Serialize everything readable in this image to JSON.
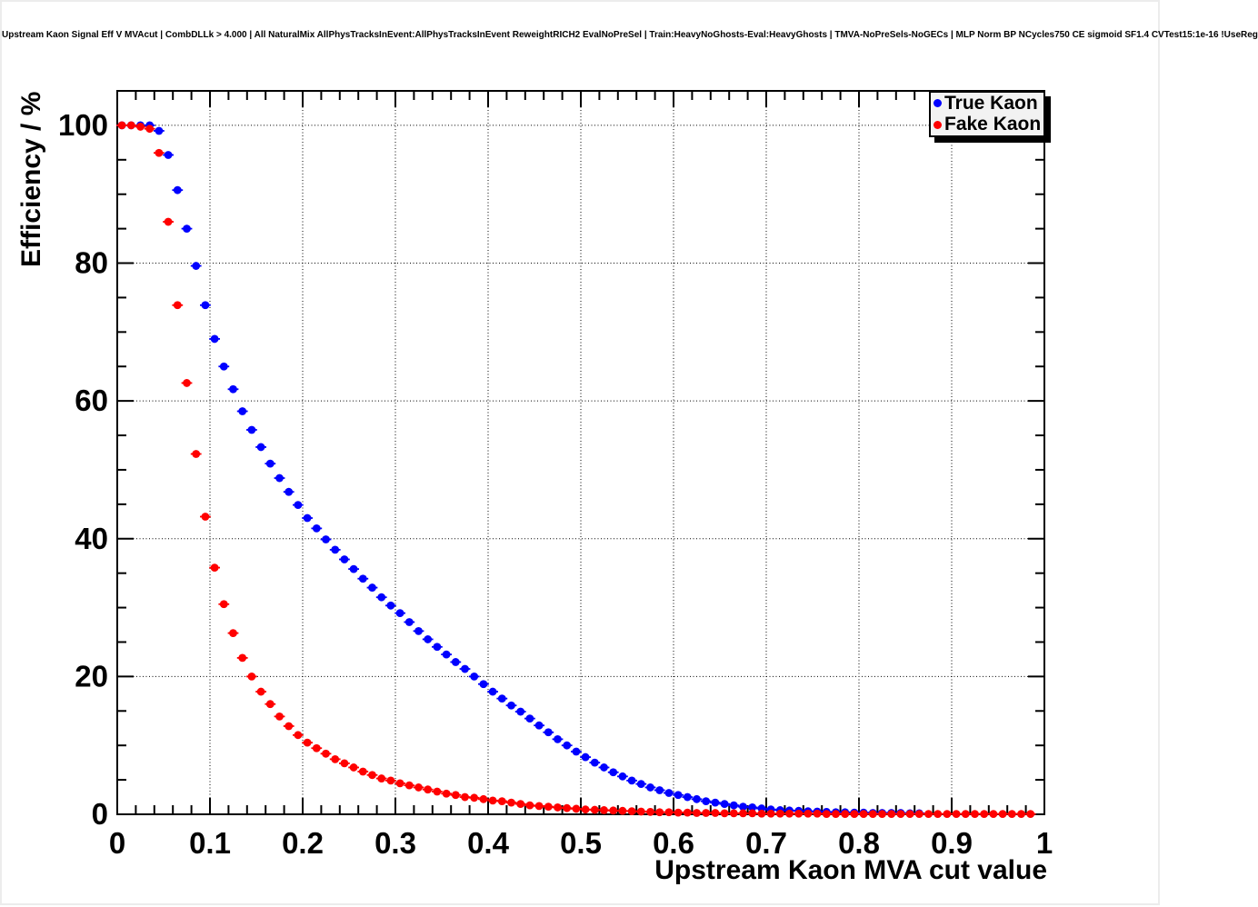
{
  "title": "Upstream Kaon Signal Eff V MVAcut | CombDLLk > 4.000 | All NaturalMix AllPhysTracksInEvent:AllPhysTracksInEvent ReweightRICH2 EvalNoPreSel | Train:HeavyNoGhosts-Eval:HeavyGhosts | TMVA-NoPreSels-NoGECs | MLP Norm BP NCycles750 CE sigmoid SF1.4 CVTest15:1e-16 !UseReg",
  "legend": {
    "entries": [
      {
        "label": "True Kaon",
        "color": "#0000ff"
      },
      {
        "label": "Fake Kaon",
        "color": "#ff0000"
      }
    ]
  },
  "chart_data": {
    "type": "scatter",
    "title": "Upstream Kaon Signal Eff V MVAcut",
    "xlabel": "Upstream Kaon MVA cut value",
    "ylabel": "Efficiency / %",
    "xlim": [
      0,
      1
    ],
    "ylim": [
      0,
      105
    ],
    "grid": true,
    "grid_style": "dotted",
    "legend_position": "top-right",
    "marker": "filled-circle",
    "x_error_half_width": 0.005,
    "x_major_ticks": [
      0,
      0.1,
      0.2,
      0.3,
      0.4,
      0.5,
      0.6,
      0.7,
      0.8,
      0.9,
      1
    ],
    "x_tick_labels": [
      "0",
      "0.1",
      "0.2",
      "0.3",
      "0.4",
      "0.5",
      "0.6",
      "0.7",
      "0.8",
      "0.9",
      "1"
    ],
    "x_minor_step": 0.02,
    "y_major_ticks": [
      0,
      20,
      40,
      60,
      80,
      100
    ],
    "y_tick_labels": [
      "0",
      "20",
      "40",
      "60",
      "80",
      "100"
    ],
    "y_minor_step": 5,
    "series": [
      {
        "name": "True Kaon",
        "color": "#0000ff",
        "x": [
          0.005,
          0.015,
          0.025,
          0.035,
          0.045,
          0.055,
          0.065,
          0.075,
          0.085,
          0.095,
          0.105,
          0.115,
          0.125,
          0.135,
          0.145,
          0.155,
          0.165,
          0.175,
          0.185,
          0.195,
          0.205,
          0.215,
          0.225,
          0.235,
          0.245,
          0.255,
          0.265,
          0.275,
          0.285,
          0.295,
          0.305,
          0.315,
          0.325,
          0.335,
          0.345,
          0.355,
          0.365,
          0.375,
          0.385,
          0.395,
          0.405,
          0.415,
          0.425,
          0.435,
          0.445,
          0.455,
          0.465,
          0.475,
          0.485,
          0.495,
          0.505,
          0.515,
          0.525,
          0.535,
          0.545,
          0.555,
          0.565,
          0.575,
          0.585,
          0.595,
          0.605,
          0.615,
          0.625,
          0.635,
          0.645,
          0.655,
          0.665,
          0.675,
          0.685,
          0.695,
          0.705,
          0.715,
          0.725,
          0.735,
          0.745,
          0.755,
          0.765,
          0.775,
          0.785,
          0.795,
          0.805,
          0.815,
          0.825,
          0.835,
          0.845,
          0.855,
          0.865
        ],
        "y": [
          100,
          100,
          100,
          100,
          99.2,
          95.7,
          90.6,
          85.0,
          79.6,
          73.9,
          69.0,
          65.0,
          61.7,
          58.5,
          55.8,
          53.3,
          50.9,
          48.8,
          46.8,
          44.9,
          43.0,
          41.5,
          39.9,
          38.4,
          37.0,
          35.6,
          34.2,
          32.9,
          31.5,
          30.3,
          29.2,
          27.9,
          26.6,
          25.4,
          24.3,
          23.2,
          22.1,
          21.1,
          20.0,
          18.9,
          17.8,
          16.8,
          15.8,
          14.9,
          13.9,
          12.9,
          11.9,
          10.9,
          10.0,
          9.1,
          8.3,
          7.5,
          6.8,
          6.1,
          5.5,
          4.9,
          4.4,
          3.9,
          3.5,
          3.1,
          2.8,
          2.5,
          2.2,
          1.9,
          1.7,
          1.5,
          1.3,
          1.1,
          1.0,
          0.85,
          0.7,
          0.6,
          0.55,
          0.5,
          0.45,
          0.4,
          0.35,
          0.3,
          0.3,
          0.25,
          0.25,
          0.2,
          0.2,
          0.2,
          0.2,
          0.15,
          0.15
        ]
      },
      {
        "name": "Fake Kaon",
        "color": "#ff0000",
        "x": [
          0.005,
          0.015,
          0.025,
          0.035,
          0.045,
          0.055,
          0.065,
          0.075,
          0.085,
          0.095,
          0.105,
          0.115,
          0.125,
          0.135,
          0.145,
          0.155,
          0.165,
          0.175,
          0.185,
          0.195,
          0.205,
          0.215,
          0.225,
          0.235,
          0.245,
          0.255,
          0.265,
          0.275,
          0.285,
          0.295,
          0.305,
          0.315,
          0.325,
          0.335,
          0.345,
          0.355,
          0.365,
          0.375,
          0.385,
          0.395,
          0.405,
          0.415,
          0.425,
          0.435,
          0.445,
          0.455,
          0.465,
          0.475,
          0.485,
          0.495,
          0.505,
          0.515,
          0.525,
          0.535,
          0.545,
          0.555,
          0.565,
          0.575,
          0.585,
          0.595,
          0.605,
          0.615,
          0.625,
          0.635,
          0.645,
          0.655,
          0.665,
          0.675,
          0.685,
          0.695,
          0.705,
          0.715,
          0.725,
          0.735,
          0.745,
          0.755,
          0.765,
          0.775,
          0.785,
          0.795,
          0.805,
          0.815,
          0.825,
          0.835,
          0.845,
          0.855,
          0.865,
          0.875,
          0.885,
          0.895,
          0.905,
          0.915,
          0.925,
          0.935,
          0.945,
          0.955,
          0.965,
          0.975,
          0.985
        ],
        "y": [
          100,
          100,
          99.8,
          99.5,
          96.0,
          86.0,
          73.9,
          62.6,
          52.3,
          43.2,
          35.8,
          30.5,
          26.3,
          22.7,
          20.0,
          17.8,
          16.0,
          14.2,
          12.8,
          11.5,
          10.4,
          9.6,
          8.8,
          8.0,
          7.4,
          6.8,
          6.2,
          5.7,
          5.2,
          4.9,
          4.5,
          4.2,
          3.9,
          3.6,
          3.3,
          3.0,
          2.8,
          2.5,
          2.4,
          2.2,
          2.0,
          1.9,
          1.7,
          1.5,
          1.3,
          1.2,
          1.1,
          1.0,
          0.9,
          0.8,
          0.7,
          0.65,
          0.6,
          0.55,
          0.5,
          0.45,
          0.4,
          0.35,
          0.3,
          0.3,
          0.25,
          0.25,
          0.2,
          0.2,
          0.2,
          0.15,
          0.15,
          0.15,
          0.15,
          0.1,
          0.1,
          0.1,
          0.1,
          0.1,
          0.1,
          0.1,
          0.05,
          0.05,
          0.05,
          0.05,
          0.05,
          0.05,
          0.05,
          0.05,
          0.05,
          0.05,
          0.05,
          0.05,
          0.05,
          0.05,
          0.05,
          0.05,
          0.05,
          0.05,
          0.05,
          0.05,
          0.05,
          0.05,
          0.05
        ]
      }
    ]
  }
}
